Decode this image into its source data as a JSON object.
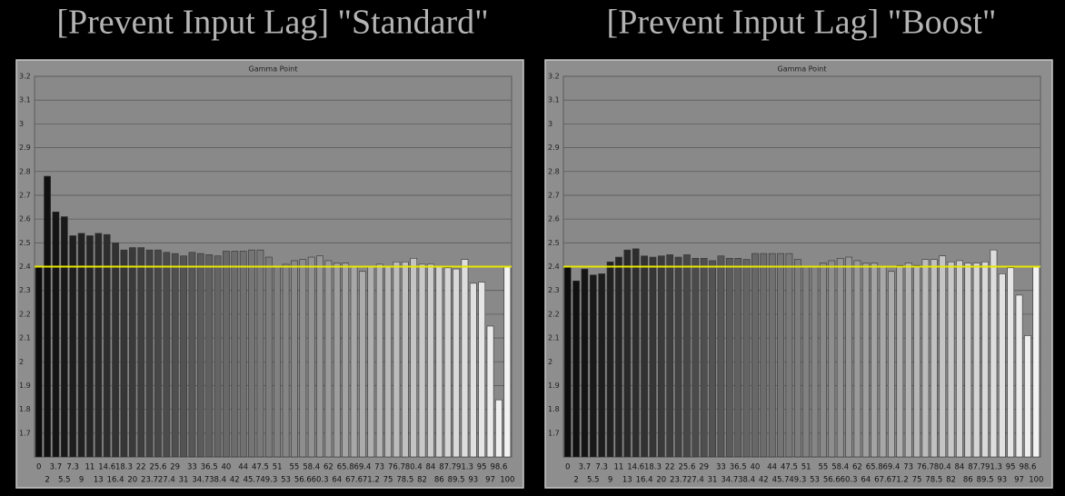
{
  "chart_data": [
    {
      "type": "bar",
      "title": "[Prevent Input Lag] \"Standard\"",
      "subtitle": "Gamma Point",
      "categories": [
        "0",
        "2",
        "3.7",
        "5.5",
        "7.3",
        "9",
        "11",
        "13",
        "14.6",
        "16.4",
        "18.3",
        "20",
        "22",
        "23.7",
        "25.6",
        "27.4",
        "29",
        "31",
        "33",
        "34.7",
        "36.5",
        "38.4",
        "40",
        "42",
        "44",
        "45.7",
        "47.5",
        "49.3",
        "51",
        "53",
        "55",
        "56.6",
        "58.4",
        "60.3",
        "62",
        "64",
        "65.8",
        "67.6",
        "69.4",
        "71.2",
        "73",
        "75",
        "76.7",
        "78.5",
        "80.4",
        "82",
        "84",
        "86",
        "87.7",
        "89.5",
        "91.3",
        "93",
        "95",
        "97",
        "98.6",
        "100"
      ],
      "values": [
        2.4,
        2.78,
        2.63,
        2.61,
        2.53,
        2.54,
        2.53,
        2.54,
        2.535,
        2.5,
        2.47,
        2.48,
        2.48,
        2.47,
        2.47,
        2.46,
        2.455,
        2.445,
        2.46,
        2.455,
        2.45,
        2.445,
        2.465,
        2.465,
        2.465,
        2.47,
        2.47,
        2.44,
        2.4,
        2.41,
        2.425,
        2.43,
        2.44,
        2.445,
        2.425,
        2.415,
        2.415,
        2.4,
        2.38,
        2.4,
        2.41,
        2.4,
        2.42,
        2.42,
        2.435,
        2.41,
        2.41,
        2.4,
        2.395,
        2.39,
        2.43,
        2.33,
        2.335,
        2.15,
        1.84,
        2.4
      ],
      "color_start": "#0c0c0c",
      "color_end": "#f2f2f2",
      "reference_line": 2.4,
      "reference_color": "#e8e800",
      "ylim": [
        1.6,
        3.2
      ],
      "yticks": [
        1.7,
        1.8,
        1.9,
        2,
        2.1,
        2.2,
        2.3,
        2.4,
        2.5,
        2.6,
        2.7,
        2.8,
        2.9,
        3,
        3.1,
        3.2
      ],
      "grid": true
    },
    {
      "type": "bar",
      "title": "[Prevent Input Lag] \"Boost\"",
      "subtitle": "Gamma Point",
      "categories": [
        "0",
        "2",
        "3.7",
        "5.5",
        "7.3",
        "9",
        "11",
        "13",
        "14.6",
        "16.4",
        "18.3",
        "20",
        "22",
        "23.7",
        "25.6",
        "27.4",
        "29",
        "31",
        "33",
        "34.7",
        "36.5",
        "38.4",
        "40",
        "42",
        "44",
        "45.7",
        "47.5",
        "49.3",
        "51",
        "53",
        "55",
        "56.6",
        "58.4",
        "60.3",
        "62",
        "64",
        "65.8",
        "67.6",
        "69.4",
        "71.2",
        "73",
        "75",
        "76.7",
        "78.5",
        "80.4",
        "82",
        "84",
        "86",
        "87.7",
        "89.5",
        "91.3",
        "93",
        "95",
        "97",
        "98.6",
        "100"
      ],
      "values": [
        2.4,
        2.34,
        2.39,
        2.365,
        2.37,
        2.42,
        2.44,
        2.47,
        2.475,
        2.445,
        2.44,
        2.445,
        2.45,
        2.44,
        2.45,
        2.435,
        2.435,
        2.425,
        2.445,
        2.435,
        2.435,
        2.43,
        2.455,
        2.455,
        2.455,
        2.455,
        2.455,
        2.43,
        2.4,
        2.4,
        2.415,
        2.425,
        2.435,
        2.44,
        2.425,
        2.415,
        2.415,
        2.4,
        2.38,
        2.405,
        2.415,
        2.405,
        2.43,
        2.43,
        2.445,
        2.42,
        2.425,
        2.415,
        2.415,
        2.42,
        2.47,
        2.37,
        2.395,
        2.28,
        2.11,
        2.4
      ],
      "color_start": "#0c0c0c",
      "color_end": "#f2f2f2",
      "reference_line": 2.4,
      "reference_color": "#e8e800",
      "ylim": [
        1.6,
        3.2
      ],
      "yticks": [
        1.7,
        1.8,
        1.9,
        2,
        2.1,
        2.2,
        2.3,
        2.4,
        2.5,
        2.6,
        2.7,
        2.8,
        2.9,
        3,
        3.1,
        3.2
      ],
      "grid": true
    }
  ]
}
